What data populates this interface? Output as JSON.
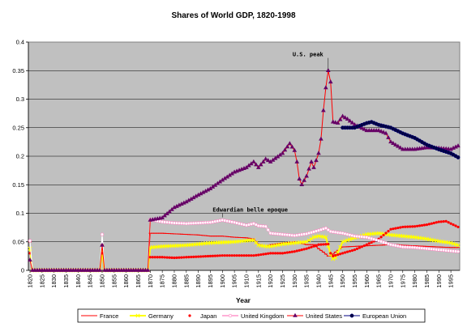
{
  "chart_data": {
    "type": "line",
    "title": "Shares of World GDP, 1820-1998",
    "xlabel": "Year",
    "ylabel": "",
    "xlim": [
      1820,
      1998
    ],
    "ylim": [
      0,
      0.4
    ],
    "y_ticks": [
      "0",
      "0.05",
      "0.1",
      "0.15",
      "0.2",
      "0.25",
      "0.3",
      "0.35",
      "0.4"
    ],
    "x_ticks": [
      "1820",
      "1825",
      "1830",
      "1835",
      "1840",
      "1845",
      "1850",
      "1855",
      "1860",
      "1865",
      "1870",
      "1875",
      "1880",
      "1885",
      "1890",
      "1895",
      "1900",
      "1905",
      "1910",
      "1915",
      "1920",
      "1925",
      "1930",
      "1935",
      "1940",
      "1945",
      "1950",
      "1955",
      "1960",
      "1965",
      "1970",
      "1975",
      "1980",
      "1985",
      "1990",
      "1995"
    ],
    "grid": "horizontal",
    "background": "#C0C0C0",
    "legend_position": "bottom",
    "annotations": [
      {
        "text": "U.S. peak",
        "x": 1944,
        "y": 0.35
      },
      {
        "text": "Edwardian belle epoque",
        "x": 1900,
        "y": 0.09
      }
    ],
    "series": [
      {
        "name": "France",
        "color": "#FF0000",
        "points": [
          [
            1820,
            0.05
          ],
          [
            1821,
            0
          ],
          [
            1849,
            0
          ],
          [
            1850,
            0.045
          ],
          [
            1851,
            0
          ],
          [
            1869,
            0
          ],
          [
            1870,
            0.065
          ],
          [
            1875,
            0.065
          ],
          [
            1880,
            0.064
          ],
          [
            1885,
            0.063
          ],
          [
            1890,
            0.062
          ],
          [
            1895,
            0.06
          ],
          [
            1900,
            0.06
          ],
          [
            1905,
            0.058
          ],
          [
            1910,
            0.057
          ],
          [
            1913,
            0.055
          ],
          [
            1915,
            0.046
          ],
          [
            1918,
            0.042
          ],
          [
            1920,
            0.045
          ],
          [
            1925,
            0.048
          ],
          [
            1930,
            0.05
          ],
          [
            1935,
            0.045
          ],
          [
            1938,
            0.045
          ],
          [
            1940,
            0.038
          ],
          [
            1942,
            0.032
          ],
          [
            1944,
            0.025
          ],
          [
            1945,
            0.025
          ],
          [
            1947,
            0.032
          ],
          [
            1950,
            0.041
          ],
          [
            1955,
            0.042
          ],
          [
            1960,
            0.043
          ],
          [
            1965,
            0.044
          ],
          [
            1970,
            0.045
          ],
          [
            1973,
            0.045
          ],
          [
            1975,
            0.044
          ],
          [
            1980,
            0.043
          ],
          [
            1985,
            0.042
          ],
          [
            1990,
            0.041
          ],
          [
            1995,
            0.04
          ],
          [
            1998,
            0.04
          ]
        ]
      },
      {
        "name": "Germany",
        "color": "#FFFF00",
        "points": [
          [
            1820,
            0.038
          ],
          [
            1821,
            0
          ],
          [
            1849,
            0
          ],
          [
            1850,
            0.033
          ],
          [
            1851,
            0
          ],
          [
            1869,
            0
          ],
          [
            1870,
            0.04
          ],
          [
            1875,
            0.042
          ],
          [
            1880,
            0.043
          ],
          [
            1885,
            0.044
          ],
          [
            1890,
            0.046
          ],
          [
            1895,
            0.048
          ],
          [
            1900,
            0.049
          ],
          [
            1905,
            0.05
          ],
          [
            1910,
            0.052
          ],
          [
            1913,
            0.053
          ],
          [
            1915,
            0.044
          ],
          [
            1918,
            0.042
          ],
          [
            1920,
            0.042
          ],
          [
            1925,
            0.046
          ],
          [
            1930,
            0.048
          ],
          [
            1935,
            0.05
          ],
          [
            1938,
            0.058
          ],
          [
            1940,
            0.06
          ],
          [
            1943,
            0.058
          ],
          [
            1945,
            0.028
          ],
          [
            1946,
            0.02
          ],
          [
            1947,
            0.022
          ],
          [
            1950,
            0.05
          ],
          [
            1955,
            0.057
          ],
          [
            1960,
            0.063
          ],
          [
            1965,
            0.065
          ],
          [
            1970,
            0.062
          ],
          [
            1975,
            0.06
          ],
          [
            1980,
            0.058
          ],
          [
            1985,
            0.055
          ],
          [
            1990,
            0.051
          ],
          [
            1995,
            0.048
          ],
          [
            1998,
            0.044
          ]
        ]
      },
      {
        "name": "Japan",
        "color": "#FF0000",
        "points": [
          [
            1820,
            0.03
          ],
          [
            1821,
            0
          ],
          [
            1849,
            0
          ],
          [
            1850,
            0.03
          ],
          [
            1851,
            0
          ],
          [
            1869,
            0
          ],
          [
            1870,
            0.023
          ],
          [
            1875,
            0.023
          ],
          [
            1880,
            0.022
          ],
          [
            1885,
            0.023
          ],
          [
            1890,
            0.024
          ],
          [
            1895,
            0.025
          ],
          [
            1900,
            0.026
          ],
          [
            1905,
            0.026
          ],
          [
            1910,
            0.026
          ],
          [
            1913,
            0.026
          ],
          [
            1915,
            0.027
          ],
          [
            1920,
            0.03
          ],
          [
            1925,
            0.03
          ],
          [
            1930,
            0.033
          ],
          [
            1935,
            0.038
          ],
          [
            1940,
            0.045
          ],
          [
            1944,
            0.046
          ],
          [
            1945,
            0.03
          ],
          [
            1946,
            0.025
          ],
          [
            1950,
            0.03
          ],
          [
            1955,
            0.036
          ],
          [
            1960,
            0.045
          ],
          [
            1965,
            0.055
          ],
          [
            1970,
            0.072
          ],
          [
            1975,
            0.076
          ],
          [
            1980,
            0.077
          ],
          [
            1985,
            0.08
          ],
          [
            1990,
            0.085
          ],
          [
            1993,
            0.086
          ],
          [
            1995,
            0.082
          ],
          [
            1998,
            0.076
          ]
        ]
      },
      {
        "name": "United Kingdom",
        "color": "#FF0000",
        "points": [
          [
            1820,
            0.052
          ],
          [
            1821,
            0
          ],
          [
            1849,
            0
          ],
          [
            1850,
            0.063
          ],
          [
            1851,
            0
          ],
          [
            1869,
            0
          ],
          [
            1870,
            0.089
          ],
          [
            1875,
            0.085
          ],
          [
            1880,
            0.083
          ],
          [
            1885,
            0.082
          ],
          [
            1890,
            0.083
          ],
          [
            1895,
            0.084
          ],
          [
            1900,
            0.088
          ],
          [
            1905,
            0.084
          ],
          [
            1910,
            0.079
          ],
          [
            1913,
            0.082
          ],
          [
            1915,
            0.078
          ],
          [
            1918,
            0.077
          ],
          [
            1920,
            0.065
          ],
          [
            1925,
            0.063
          ],
          [
            1930,
            0.061
          ],
          [
            1935,
            0.064
          ],
          [
            1940,
            0.07
          ],
          [
            1943,
            0.074
          ],
          [
            1945,
            0.068
          ],
          [
            1950,
            0.065
          ],
          [
            1955,
            0.06
          ],
          [
            1960,
            0.058
          ],
          [
            1965,
            0.052
          ],
          [
            1970,
            0.045
          ],
          [
            1975,
            0.041
          ],
          [
            1980,
            0.04
          ],
          [
            1985,
            0.038
          ],
          [
            1990,
            0.036
          ],
          [
            1995,
            0.034
          ],
          [
            1998,
            0.033
          ]
        ]
      },
      {
        "name": "United States",
        "color": "#7F007F",
        "points": [
          [
            1820,
            0.018
          ],
          [
            1821,
            0
          ],
          [
            1849,
            0
          ],
          [
            1850,
            0.044
          ],
          [
            1851,
            0
          ],
          [
            1869,
            0
          ],
          [
            1870,
            0.088
          ],
          [
            1875,
            0.092
          ],
          [
            1880,
            0.11
          ],
          [
            1885,
            0.12
          ],
          [
            1890,
            0.132
          ],
          [
            1895,
            0.143
          ],
          [
            1900,
            0.158
          ],
          [
            1905,
            0.172
          ],
          [
            1910,
            0.18
          ],
          [
            1913,
            0.19
          ],
          [
            1915,
            0.18
          ],
          [
            1918,
            0.195
          ],
          [
            1920,
            0.19
          ],
          [
            1925,
            0.205
          ],
          [
            1928,
            0.222
          ],
          [
            1930,
            0.21
          ],
          [
            1931,
            0.19
          ],
          [
            1932,
            0.16
          ],
          [
            1933,
            0.15
          ],
          [
            1935,
            0.165
          ],
          [
            1937,
            0.19
          ],
          [
            1938,
            0.18
          ],
          [
            1940,
            0.205
          ],
          [
            1941,
            0.23
          ],
          [
            1942,
            0.28
          ],
          [
            1943,
            0.32
          ],
          [
            1944,
            0.35
          ],
          [
            1945,
            0.33
          ],
          [
            1946,
            0.26
          ],
          [
            1948,
            0.258
          ],
          [
            1950,
            0.27
          ],
          [
            1952,
            0.265
          ],
          [
            1955,
            0.255
          ],
          [
            1960,
            0.245
          ],
          [
            1965,
            0.245
          ],
          [
            1968,
            0.24
          ],
          [
            1970,
            0.225
          ],
          [
            1975,
            0.212
          ],
          [
            1980,
            0.212
          ],
          [
            1985,
            0.215
          ],
          [
            1990,
            0.214
          ],
          [
            1995,
            0.212
          ],
          [
            1998,
            0.218
          ]
        ]
      },
      {
        "name": "European Union",
        "color": "#000080",
        "points": [
          [
            1950,
            0.25
          ],
          [
            1955,
            0.25
          ],
          [
            1960,
            0.258
          ],
          [
            1962,
            0.26
          ],
          [
            1965,
            0.255
          ],
          [
            1970,
            0.25
          ],
          [
            1975,
            0.24
          ],
          [
            1980,
            0.232
          ],
          [
            1985,
            0.22
          ],
          [
            1990,
            0.212
          ],
          [
            1995,
            0.205
          ],
          [
            1998,
            0.198
          ]
        ]
      }
    ]
  }
}
